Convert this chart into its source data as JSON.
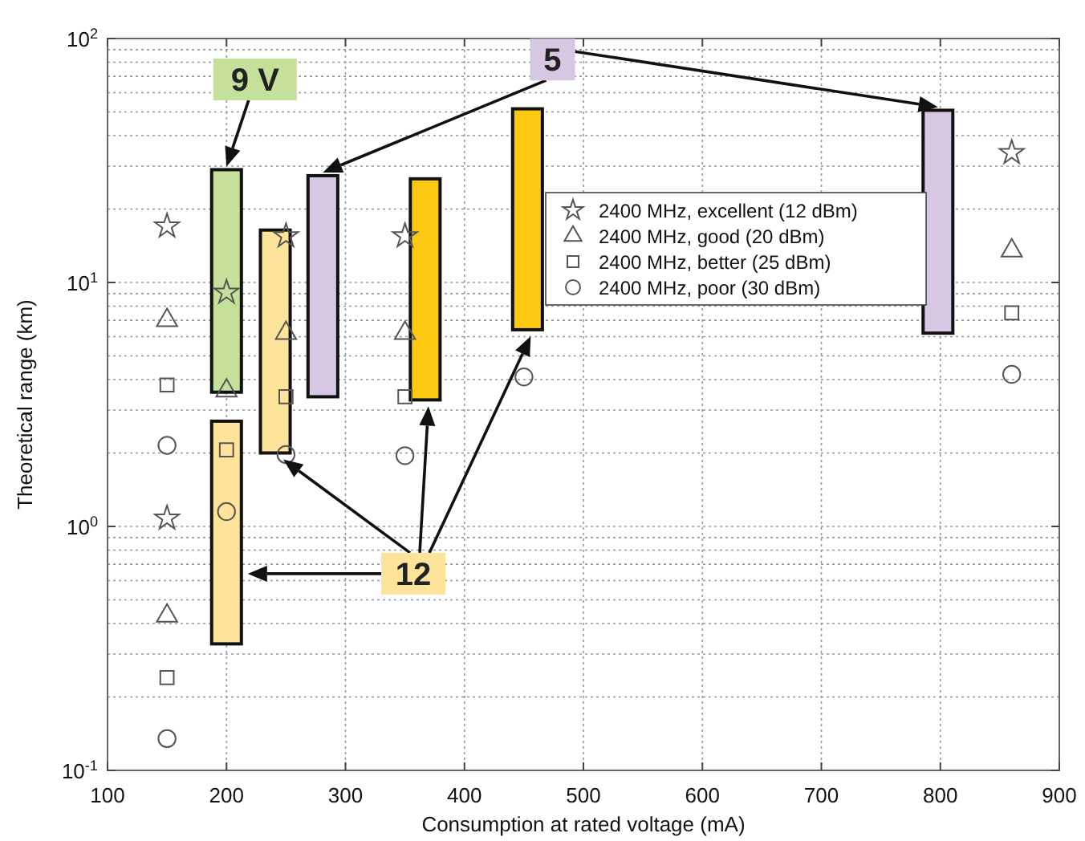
{
  "chart_data": {
    "type": "scatter",
    "xlabel": "Consumption at rated voltage  (mA)",
    "ylabel": "Theoretical range (km)",
    "log": "y",
    "grid": true,
    "legend": "top right",
    "xlim": [
      100,
      900
    ],
    "xticks": [
      100,
      200,
      300,
      400,
      500,
      600,
      700,
      800,
      900
    ],
    "ylim": [
      0.1,
      100
    ],
    "yticks": [
      {
        "value": 0.1,
        "label": "10$^{-1}$"
      },
      {
        "value": 1,
        "label": "10$^{0}$"
      },
      {
        "value": 10,
        "label": "10$^{1}$"
      },
      {
        "value": 100,
        "label": "10$^{2}$"
      }
    ],
    "series": [
      {
        "type": "bar",
        "x": [
          200,
          241,
          281,
          367,
          453,
          798
        ],
        "base": [
          3.55,
          2.0,
          3.4,
          3.3,
          6.4,
          6.2
        ],
        "values": [
          25.45,
          14.4,
          24,
          23.3,
          45.1,
          44.6
        ],
        "colors": [
          "#c5e09a",
          "#fde49a",
          "#d6c8e2",
          "#fcc812",
          "#fcc812",
          "#d6c8e2"
        ]
      },
      {
        "type": "bar",
        "x": [
          200
        ],
        "base": [
          0.33
        ],
        "values": [
          2.37
        ],
        "colors": [
          "#fde49a"
        ]
      },
      {
        "name": "2400 MHz, excellent (12 dBm)",
        "marker": "star",
        "color": "#555555",
        "x": [
          150,
          150,
          200,
          250,
          350,
          860
        ],
        "values": [
          17,
          1.08,
          9.1,
          15.5,
          15.5,
          34
        ]
      },
      {
        "name": "2400 MHz, good (20 dBm)",
        "marker": "triangle",
        "color": "#555555",
        "x": [
          150,
          150,
          200,
          250,
          350,
          860
        ],
        "values": [
          7,
          0.43,
          3.6,
          6.2,
          6.2,
          13.5
        ]
      },
      {
        "name": "2400 MHz, better (25 dBm)",
        "marker": "square",
        "color": "#555555",
        "x": [
          150,
          150,
          200,
          250,
          350,
          860
        ],
        "values": [
          3.8,
          0.24,
          2.06,
          3.4,
          3.4,
          7.5
        ]
      },
      {
        "name": "2400 MHz, poor (30 dBm)",
        "marker": "circle",
        "color": "#555555",
        "x": [
          150,
          150,
          200,
          250,
          350,
          450,
          860
        ],
        "values": [
          2.15,
          0.135,
          1.15,
          1.97,
          1.95,
          4.1,
          4.2
        ]
      }
    ],
    "annotations": [
      "9 V",
      "5",
      "12"
    ]
  }
}
